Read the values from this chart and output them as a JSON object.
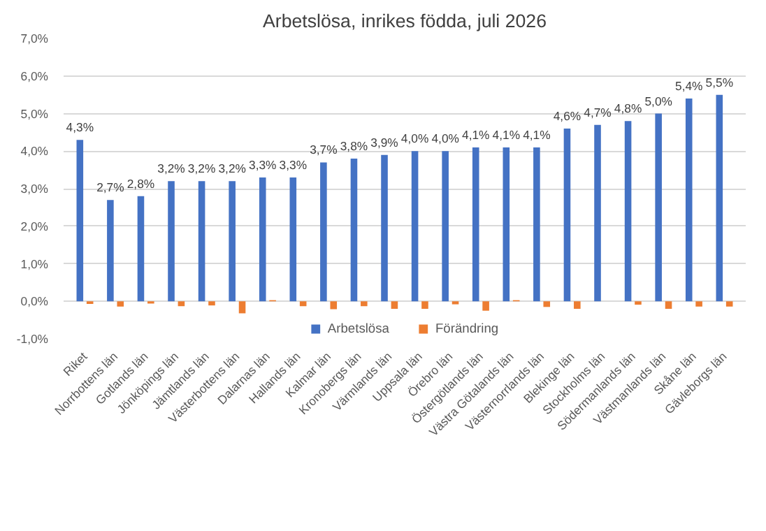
{
  "chart_data": {
    "type": "bar",
    "title": "Arbetslösa, inrikes födda, juli 2026",
    "categories": [
      "Riket",
      "Norrbottens län",
      "Gotlands län",
      "Jönköpings län",
      "Jämtlands län",
      "Västerbottens län",
      "Dalarnas län",
      "Hallands län",
      "Kalmar län",
      "Kronobergs län",
      "Värmlands län",
      "Uppsala län",
      "Örebro län",
      "Östergötlands län",
      "Västra Götalands län",
      "Västernorrlands län",
      "Blekinge län",
      "Stockholms län",
      "Södermanlands län",
      "Västmanlands län",
      "Skåne län",
      "Gävleborgs län"
    ],
    "series": [
      {
        "name": "Arbetslösa",
        "color": "#4472c4",
        "values": [
          4.3,
          2.7,
          2.8,
          3.2,
          3.2,
          3.2,
          3.3,
          3.3,
          3.7,
          3.8,
          3.9,
          4.0,
          4.0,
          4.1,
          4.1,
          4.1,
          4.6,
          4.7,
          4.8,
          5.0,
          5.4,
          5.5
        ],
        "value_labels": [
          "4,3%",
          "2,7%",
          "2,8%",
          "3,2%",
          "3,2%",
          "3,2%",
          "3,3%",
          "3,3%",
          "3,7%",
          "3,8%",
          "3,9%",
          "4,0%",
          "4,0%",
          "4,1%",
          "4,1%",
          "4,1%",
          "4,6%",
          "4,7%",
          "4,8%",
          "5,0%",
          "5,4%",
          "5,5%"
        ]
      },
      {
        "name": "Förändring",
        "color": "#ed7d31",
        "values": [
          -0.07,
          -0.14,
          -0.06,
          -0.13,
          -0.11,
          -0.32,
          0.03,
          -0.13,
          -0.21,
          -0.13,
          -0.2,
          -0.2,
          -0.08,
          -0.25,
          0.03,
          -0.15,
          -0.2,
          0.0,
          -0.09,
          -0.2,
          -0.14,
          -0.14
        ]
      }
    ],
    "ylim": [
      -1,
      7
    ],
    "yticks": [
      {
        "value": -1,
        "label": "-1,0%"
      },
      {
        "value": 0,
        "label": "0,0%"
      },
      {
        "value": 1,
        "label": "1,0%"
      },
      {
        "value": 2,
        "label": "2,0%"
      },
      {
        "value": 3,
        "label": "3,0%"
      },
      {
        "value": 4,
        "label": "4,0%"
      },
      {
        "value": 5,
        "label": "5,0%"
      },
      {
        "value": 6,
        "label": "6,0%"
      },
      {
        "value": 7,
        "label": "7,0%"
      }
    ],
    "grid": "y",
    "legend": "bottom"
  }
}
